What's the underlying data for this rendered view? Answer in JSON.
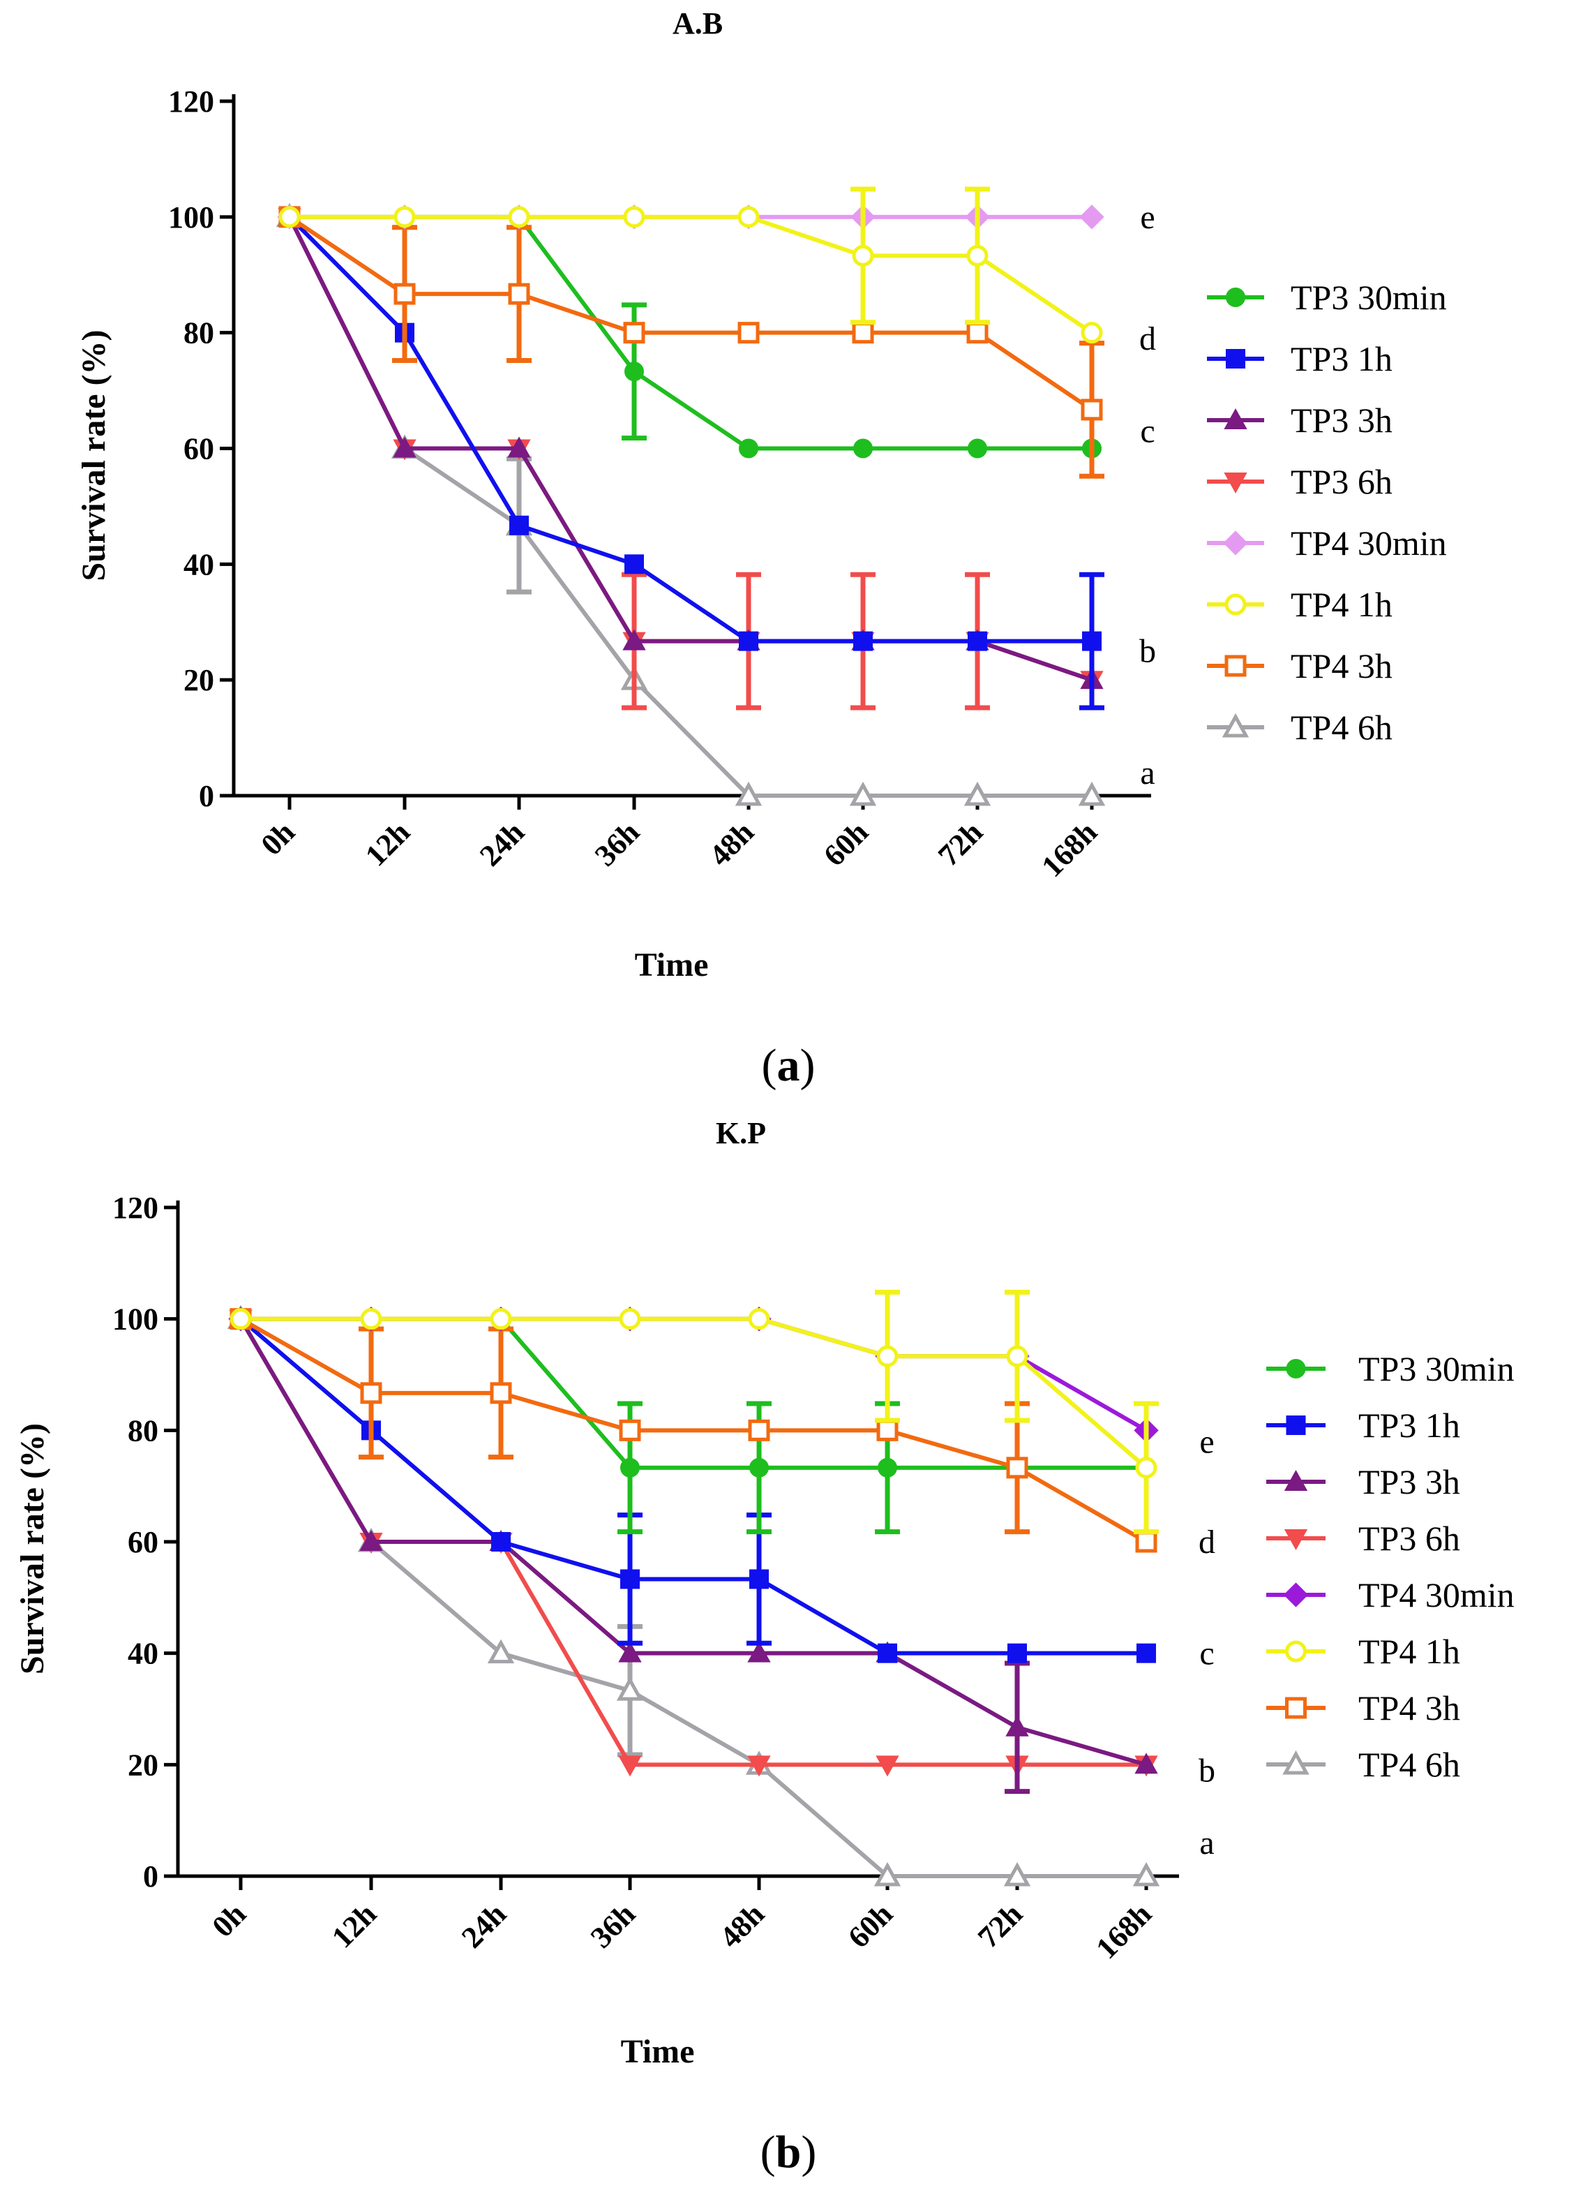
{
  "chart_data": [
    {
      "type": "line",
      "title": "A.B",
      "panel_label": "(a)",
      "panel_letter": "a",
      "xlabel": "Time",
      "ylabel": "Survival rate (%)",
      "categories": [
        "0h",
        "12h",
        "24h",
        "36h",
        "48h",
        "60h",
        "72h",
        "168h"
      ],
      "ylim": [
        0,
        120
      ],
      "yticks": [
        0,
        20,
        40,
        60,
        80,
        100,
        120
      ],
      "significance": [
        {
          "label": "e",
          "y": 100
        },
        {
          "label": "d",
          "y": 79
        },
        {
          "label": "c",
          "y": 63
        },
        {
          "label": "b",
          "y": 25
        },
        {
          "label": "a",
          "y": 4
        }
      ],
      "series": [
        {
          "name": "TP3 30min",
          "color": "#1ebe1e",
          "marker": "circle",
          "filled": true,
          "values": [
            100,
            100,
            100,
            73.3,
            60,
            60,
            60,
            60
          ],
          "errors": [
            0,
            0,
            0,
            11.5,
            0,
            0,
            0,
            0
          ]
        },
        {
          "name": "TP3 1h",
          "color": "#1010ee",
          "marker": "square",
          "filled": true,
          "values": [
            100,
            80,
            46.7,
            40,
            26.7,
            26.7,
            26.7,
            26.7
          ],
          "errors": [
            0,
            0,
            0,
            0,
            0,
            0,
            0,
            11.5
          ]
        },
        {
          "name": "TP3 3h",
          "color": "#7a1a82",
          "marker": "triangle-up",
          "filled": true,
          "values": [
            100,
            60,
            60,
            26.7,
            26.7,
            26.7,
            26.7,
            20
          ],
          "errors": [
            0,
            0,
            0,
            0,
            0,
            0,
            0,
            0
          ]
        },
        {
          "name": "TP3 6h",
          "color": "#f24c4c",
          "marker": "triangle-down",
          "filled": true,
          "values": [
            100,
            60,
            60,
            26.7,
            26.7,
            26.7,
            26.7,
            20
          ],
          "errors": [
            0,
            0,
            0,
            11.5,
            11.5,
            11.5,
            11.5,
            0
          ]
        },
        {
          "name": "TP4 30min",
          "color": "#e59af2",
          "marker": "diamond",
          "filled": true,
          "values": [
            100,
            100,
            100,
            100,
            100,
            100,
            100,
            100
          ],
          "errors": [
            0,
            0,
            0,
            0,
            0,
            0,
            0,
            0
          ]
        },
        {
          "name": "TP4 1h",
          "color": "#f2f21a",
          "marker": "circle",
          "filled": false,
          "values": [
            100,
            100,
            100,
            100,
            100,
            93.3,
            93.3,
            80
          ],
          "errors": [
            0,
            0,
            0,
            0,
            0,
            11.5,
            11.5,
            0
          ]
        },
        {
          "name": "TP4 3h",
          "color": "#f26a10",
          "marker": "square",
          "filled": false,
          "values": [
            100,
            86.7,
            86.7,
            80,
            80,
            80,
            80,
            66.7
          ],
          "errors": [
            0,
            11.5,
            11.5,
            0,
            0,
            0,
            0,
            11.5
          ]
        },
        {
          "name": "TP4 6h",
          "color": "#a3a3a8",
          "marker": "triangle-up",
          "filled": false,
          "values": [
            100,
            60,
            46.7,
            20,
            0,
            0,
            0,
            0
          ],
          "errors": [
            0,
            0,
            11.5,
            0,
            0,
            0,
            0,
            0
          ]
        }
      ]
    },
    {
      "type": "line",
      "title": "K.P",
      "panel_label": "(b)",
      "panel_letter": "b",
      "xlabel": "Time",
      "ylabel": "Survival rate (%)",
      "categories": [
        "0h",
        "12h",
        "24h",
        "36h",
        "48h",
        "60h",
        "72h",
        "168h"
      ],
      "ylim": [
        0,
        120
      ],
      "yticks": [
        0,
        20,
        40,
        60,
        80,
        100,
        120
      ],
      "significance": [
        {
          "label": "e",
          "y": 78
        },
        {
          "label": "d",
          "y": 60
        },
        {
          "label": "c",
          "y": 40
        },
        {
          "label": "b",
          "y": 19
        },
        {
          "label": "a",
          "y": 6
        }
      ],
      "series": [
        {
          "name": "TP3 30min",
          "color": "#1ebe1e",
          "marker": "circle",
          "filled": true,
          "values": [
            100,
            100,
            100,
            73.3,
            73.3,
            73.3,
            73.3,
            73.3
          ],
          "errors": [
            0,
            0,
            0,
            11.5,
            11.5,
            11.5,
            0,
            0
          ]
        },
        {
          "name": "TP3 1h",
          "color": "#1010ee",
          "marker": "square",
          "filled": true,
          "values": [
            100,
            80,
            60,
            53.3,
            53.3,
            40,
            40,
            40
          ],
          "errors": [
            0,
            0,
            0,
            11.5,
            11.5,
            0,
            0,
            0
          ]
        },
        {
          "name": "TP3 3h",
          "color": "#7a1a82",
          "marker": "triangle-up",
          "filled": true,
          "values": [
            100,
            60,
            60,
            40,
            40,
            40,
            26.7,
            20
          ],
          "errors": [
            0,
            0,
            0,
            0,
            0,
            0,
            11.5,
            0
          ]
        },
        {
          "name": "TP3 6h",
          "color": "#f24c4c",
          "marker": "triangle-down",
          "filled": true,
          "values": [
            100,
            60,
            60,
            20,
            20,
            20,
            20,
            20
          ],
          "errors": [
            0,
            0,
            0,
            0,
            0,
            0,
            0,
            0
          ]
        },
        {
          "name": "TP4 30min",
          "color": "#9b1ad9",
          "marker": "diamond",
          "filled": true,
          "values": [
            100,
            100,
            100,
            100,
            100,
            93.3,
            93.3,
            80
          ],
          "errors": [
            0,
            0,
            0,
            0,
            0,
            0,
            0,
            0
          ]
        },
        {
          "name": "TP4 1h",
          "color": "#f2f21a",
          "marker": "circle",
          "filled": false,
          "values": [
            100,
            100,
            100,
            100,
            100,
            93.3,
            93.3,
            73.3
          ],
          "errors": [
            0,
            0,
            0,
            0,
            0,
            11.5,
            11.5,
            11.5
          ]
        },
        {
          "name": "TP4 3h",
          "color": "#f26a10",
          "marker": "square",
          "filled": false,
          "values": [
            100,
            86.7,
            86.7,
            80,
            80,
            80,
            73.3,
            60
          ],
          "errors": [
            0,
            11.5,
            11.5,
            0,
            0,
            0,
            11.5,
            0
          ]
        },
        {
          "name": "TP4 6h",
          "color": "#a3a3a8",
          "marker": "triangle-up",
          "filled": false,
          "values": [
            100,
            60,
            40,
            33.3,
            20,
            0,
            0,
            0
          ],
          "errors": [
            0,
            0,
            0,
            11.5,
            0,
            0,
            0,
            0
          ]
        }
      ]
    }
  ]
}
